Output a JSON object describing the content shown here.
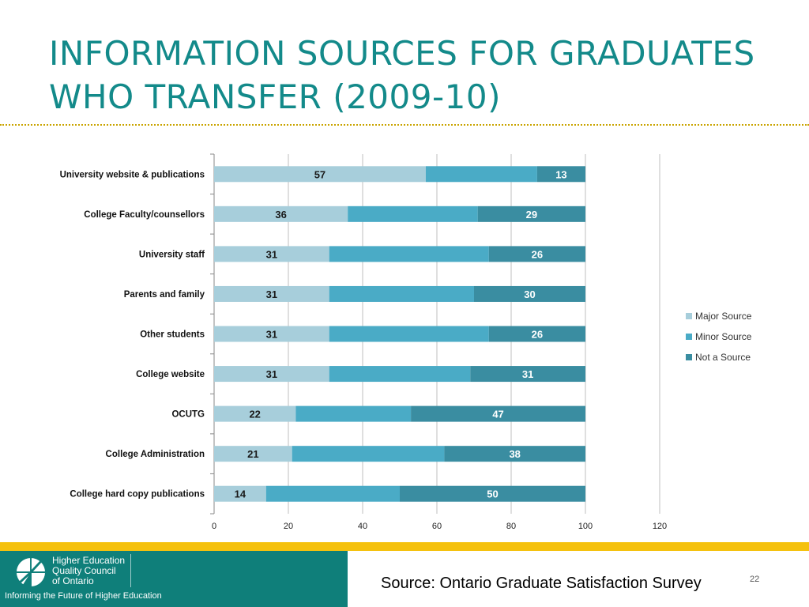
{
  "slide": {
    "title_lines": [
      "INFORMATION SOURCES FOR GRADUATES",
      "WHO TRANSFER (2009-10)"
    ],
    "source": "Source: Ontario Graduate Satisfaction Survey",
    "page_number": "22"
  },
  "logo": {
    "lines": [
      "Higher Education",
      "Quality Council",
      "of Ontario"
    ],
    "tagline": "Informing the Future of Higher Education"
  },
  "colors": {
    "title": "#138a8a",
    "major": "#a7cedb",
    "minor": "#4aabc6",
    "not": "#3a8da1",
    "footer_teal": "#0f7f7a",
    "footer_yellow": "#f5c10d"
  },
  "chart_data": {
    "type": "bar",
    "orientation": "horizontal",
    "stacked": true,
    "categories": [
      "University website & publications",
      "College Faculty/counsellors",
      "University staff",
      "Parents and family",
      "Other students",
      "College website",
      "OCUTG",
      "College Administration",
      "College hard copy publications"
    ],
    "series": [
      {
        "name": "Major Source",
        "values": [
          57,
          36,
          31,
          31,
          31,
          31,
          22,
          21,
          14
        ]
      },
      {
        "name": "Minor Source",
        "values": [
          30,
          35,
          43,
          39,
          43,
          38,
          31,
          41,
          36
        ]
      },
      {
        "name": "Not a Source",
        "values": [
          13,
          29,
          26,
          30,
          26,
          31,
          47,
          38,
          50
        ]
      }
    ],
    "labeled_series": [
      "Major Source",
      "Not a Source"
    ],
    "xlim": [
      0,
      120
    ],
    "xticks": [
      0,
      20,
      40,
      60,
      80,
      100,
      120
    ],
    "grid": true,
    "legend_position": "right"
  }
}
